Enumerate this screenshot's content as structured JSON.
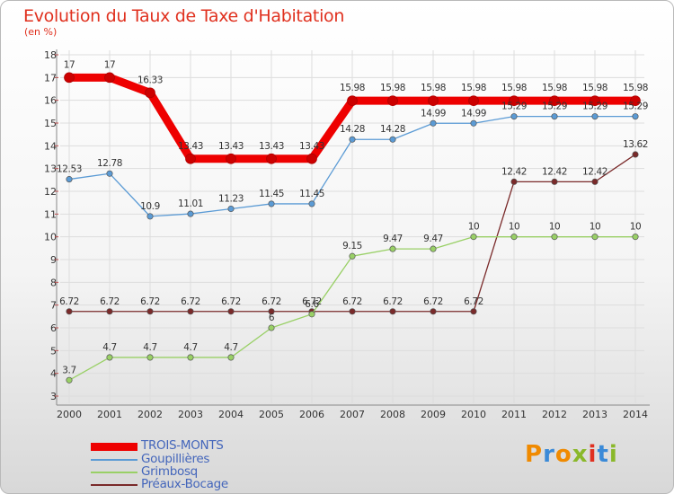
{
  "title": "Evolution du Taux de Taxe d'Habitation",
  "unit_label": "(en %)",
  "logo_text": "Proxiti",
  "colors": {
    "title": "#e0301e",
    "legend_text": "#4466bb",
    "axis": "#888888",
    "grid": "#dddddd"
  },
  "chart_data": {
    "type": "line",
    "title": "Evolution du Taux de Taxe d'Habitation",
    "ylabel": "(en %)",
    "xlabel": "",
    "x": [
      "2000",
      "2001",
      "2002",
      "2003",
      "2004",
      "2005",
      "2006",
      "2007",
      "2008",
      "2009",
      "2010",
      "2011",
      "2012",
      "2013",
      "2014"
    ],
    "ylim": [
      3,
      18
    ],
    "yticks": [
      3,
      4,
      5,
      6,
      7,
      8,
      9,
      10,
      11,
      12,
      13,
      14,
      15,
      16,
      17,
      18
    ],
    "grid": true,
    "legend_position": "bottom-left",
    "series": [
      {
        "name": "TROIS-MONTS",
        "color": "#ee0000",
        "values": [
          17,
          17,
          16.33,
          13.43,
          13.43,
          13.43,
          13.43,
          15.98,
          15.98,
          15.98,
          15.98,
          15.98,
          15.98,
          15.98,
          15.98
        ],
        "labels": [
          "17",
          "17",
          "16.33",
          "13.43",
          "13.43",
          "13.43",
          "13.43",
          "15.98",
          "15.98",
          "15.98",
          "15.98",
          "15.98",
          "15.98",
          "15.98",
          "15.98"
        ]
      },
      {
        "name": "Goupillières",
        "color": "#5b9bd5",
        "values": [
          12.53,
          12.78,
          10.9,
          11.01,
          11.23,
          11.45,
          11.45,
          14.28,
          14.28,
          14.99,
          14.99,
          15.29,
          15.29,
          15.29,
          15.29
        ],
        "labels": [
          "12.53",
          "12.78",
          "10.9",
          "11.01",
          "11.23",
          "11.45",
          "11.45",
          "14.28",
          "14.28",
          "14.99",
          "14.99",
          "15.29",
          "15.29",
          "15.29",
          "15.29"
        ]
      },
      {
        "name": "Grimbosq",
        "color": "#99d066",
        "values": [
          3.7,
          4.7,
          4.7,
          4.7,
          4.7,
          6,
          6.6,
          9.15,
          9.47,
          9.47,
          10,
          10,
          10,
          10,
          10
        ],
        "labels": [
          "3.7",
          "4.7",
          "4.7",
          "4.7",
          "4.7",
          "6",
          "6.6",
          "9.15",
          "9.47",
          "9.47",
          "10",
          "10",
          "10",
          "10",
          "10"
        ]
      },
      {
        "name": "Préaux-Bocage",
        "color": "#7a2a2a",
        "values": [
          6.72,
          6.72,
          6.72,
          6.72,
          6.72,
          6.72,
          6.72,
          6.72,
          6.72,
          6.72,
          6.72,
          12.42,
          12.42,
          12.42,
          13.62
        ],
        "labels": [
          "6.72",
          "6.72",
          "6.72",
          "6.72",
          "6.72",
          "6.72",
          "6.72",
          "6.72",
          "6.72",
          "6.72",
          "6.72",
          "12.42",
          "12.42",
          "12.42",
          "13.62"
        ]
      }
    ]
  }
}
